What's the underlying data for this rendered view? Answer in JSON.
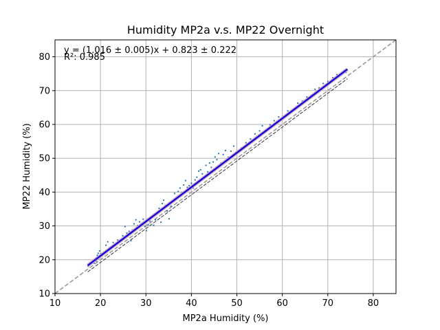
{
  "chart_data": {
    "type": "scatter",
    "title": "Humidity MP2a v.s. MP22 Overnight",
    "xlabel": "MP2a Humidity (%)",
    "ylabel": "MP22 Humidity (%)",
    "xlim": [
      10,
      85
    ],
    "ylim": [
      10,
      85
    ],
    "xticks": [
      10,
      20,
      30,
      40,
      50,
      60,
      70,
      80
    ],
    "yticks": [
      10,
      20,
      30,
      40,
      50,
      60,
      70,
      80
    ],
    "grid": true,
    "annotations": {
      "equation": "y = (1.016 ± 0.005)x + 0.823 ± 0.222",
      "r2": "R²: 0.985"
    },
    "fit": {
      "slope": 1.016,
      "intercept": 0.823,
      "x_range": [
        17.2,
        74.3
      ]
    },
    "series": [
      {
        "role": "points",
        "color": "#1f77b4",
        "points": [
          [
            17.3,
            18.1
          ],
          [
            17.6,
            18.6
          ],
          [
            18.0,
            18.9
          ],
          [
            18.3,
            19.4
          ],
          [
            18.6,
            19.0
          ],
          [
            18.9,
            20.2
          ],
          [
            19.1,
            19.6
          ],
          [
            19.3,
            21.3
          ],
          [
            19.5,
            21.9
          ],
          [
            19.8,
            22.6
          ],
          [
            20.1,
            21.8
          ],
          [
            20.4,
            21.2
          ],
          [
            20.7,
            22.1
          ],
          [
            21.2,
            24.3
          ],
          [
            21.6,
            25.3
          ],
          [
            22.0,
            23.6
          ],
          [
            22.4,
            23.9
          ],
          [
            22.8,
            25.1
          ],
          [
            23.3,
            24.6
          ],
          [
            23.8,
            25.8
          ],
          [
            24.3,
            25.4
          ],
          [
            24.9,
            27.1
          ],
          [
            25.4,
            29.8
          ],
          [
            25.8,
            27.9
          ],
          [
            26.3,
            28.4
          ],
          [
            26.7,
            25.6
          ],
          [
            27.0,
            28.8
          ],
          [
            27.4,
            30.6
          ],
          [
            27.8,
            31.8
          ],
          [
            28.2,
            30.1
          ],
          [
            28.6,
            31.2
          ],
          [
            29.0,
            30.7
          ],
          [
            29.4,
            32.0
          ],
          [
            29.8,
            29.9
          ],
          [
            30.1,
            28.6
          ],
          [
            30.5,
            30.4
          ],
          [
            30.9,
            31.4
          ],
          [
            31.3,
            32.6
          ],
          [
            31.7,
            30.2
          ],
          [
            32.1,
            31.8
          ],
          [
            32.5,
            33.6
          ],
          [
            32.9,
            35.2
          ],
          [
            33.3,
            31.1
          ],
          [
            33.6,
            36.6
          ],
          [
            33.9,
            37.6
          ],
          [
            34.3,
            36.1
          ],
          [
            34.7,
            34.4
          ],
          [
            35.1,
            32.1
          ],
          [
            35.5,
            35.8
          ],
          [
            35.9,
            37.4
          ],
          [
            36.3,
            39.6
          ],
          [
            36.7,
            38.2
          ],
          [
            37.1,
            40.2
          ],
          [
            37.5,
            41.2
          ],
          [
            37.9,
            39.9
          ],
          [
            38.3,
            42.1
          ],
          [
            38.7,
            43.4
          ],
          [
            39.1,
            41.4
          ],
          [
            39.5,
            41.9
          ],
          [
            40.0,
            42.6
          ],
          [
            40.4,
            41.2
          ],
          [
            40.8,
            43.6
          ],
          [
            41.2,
            44.4
          ],
          [
            41.6,
            46.2
          ],
          [
            42.0,
            46.6
          ],
          [
            42.4,
            45.4
          ],
          [
            42.8,
            44.1
          ],
          [
            43.2,
            47.9
          ],
          [
            43.6,
            46.0
          ],
          [
            44.0,
            48.6
          ],
          [
            44.4,
            47.3
          ],
          [
            44.8,
            48.9
          ],
          [
            45.2,
            50.4
          ],
          [
            45.6,
            49.6
          ],
          [
            46.0,
            51.4
          ],
          [
            46.5,
            48.6
          ],
          [
            47.0,
            51.1
          ],
          [
            47.5,
            52.3
          ],
          [
            48.1,
            50.3
          ],
          [
            48.7,
            52.1
          ],
          [
            49.3,
            53.6
          ],
          [
            50.2,
            51.8
          ],
          [
            51.0,
            53.1
          ],
          [
            52.0,
            54.6
          ],
          [
            53.0,
            55.7
          ],
          [
            54.0,
            57.2
          ],
          [
            55.0,
            58.1
          ],
          [
            55.6,
            59.6
          ],
          [
            56.5,
            58.4
          ],
          [
            57.3,
            59.9
          ],
          [
            58.2,
            61.1
          ],
          [
            59.2,
            62.2
          ],
          [
            60.1,
            62.3
          ],
          [
            61.2,
            64.0
          ],
          [
            62.3,
            64.4
          ],
          [
            63.4,
            66.3
          ],
          [
            64.4,
            66.9
          ],
          [
            65.4,
            68.1
          ],
          [
            66.3,
            68.6
          ],
          [
            67.2,
            70.4
          ],
          [
            68.1,
            70.8
          ],
          [
            69.0,
            72.1
          ],
          [
            70.0,
            72.7
          ],
          [
            71.1,
            73.8
          ],
          [
            72.0,
            74.7
          ],
          [
            72.9,
            75.1
          ],
          [
            73.5,
            75.9
          ],
          [
            74.0,
            75.4
          ],
          [
            74.2,
            76.2
          ]
        ]
      },
      {
        "role": "fit-line",
        "color": "#0000ff"
      },
      {
        "role": "identity-line",
        "color": "#999999"
      }
    ]
  }
}
